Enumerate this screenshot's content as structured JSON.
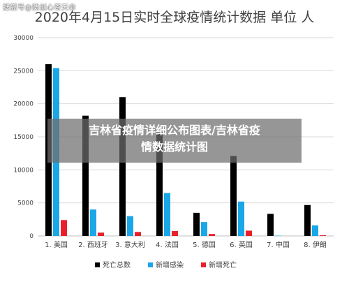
{
  "watermark": "搜狐号@奘创心寄天命",
  "overlay": {
    "line1": "吉林省疫情详细公布图表/吉林省疫",
    "line2": "情数据统计图"
  },
  "chart_data": {
    "type": "bar",
    "title": "2020年4月15日实时全球疫情统计数据 单位 人",
    "categories": [
      "1. 美国",
      "2. 西班牙",
      "3. 意大利",
      "4. 法国",
      "5. 德国",
      "6. 英国",
      "7. 中国",
      "8. 伊朗"
    ],
    "series": [
      {
        "name": "死亡总数",
        "color": "#000000",
        "values": [
          26000,
          18200,
          21000,
          15700,
          3500,
          12100,
          3340,
          4680
        ]
      },
      {
        "name": "新增感染",
        "color": "#1aa7e8",
        "values": [
          25400,
          4000,
          3000,
          6500,
          2100,
          5200,
          50,
          1600
        ]
      },
      {
        "name": "新增死亡",
        "color": "#e8202b",
        "values": [
          2400,
          500,
          600,
          750,
          300,
          800,
          0,
          100
        ]
      }
    ],
    "yticks": [
      0,
      5000,
      10000,
      15000,
      20000,
      25000,
      30000
    ],
    "ylim": [
      0,
      30000
    ],
    "grid": true,
    "legend_position": "bottom"
  }
}
